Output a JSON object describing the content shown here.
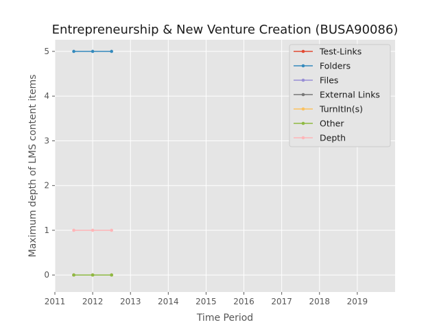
{
  "chart_data": {
    "type": "line",
    "title": "Entrepreneurship & New Venture Creation (BUSA90086)",
    "xlabel": "Time Period",
    "ylabel": "Maximum depth of LMS content items",
    "xlim": [
      2011,
      2020
    ],
    "ylim": [
      -0.38,
      5.26
    ],
    "x_ticks": [
      2011,
      2012,
      2013,
      2014,
      2015,
      2016,
      2017,
      2018,
      2019
    ],
    "y_ticks": [
      0,
      1,
      2,
      3,
      4,
      5
    ],
    "grid": true,
    "legend_position": "top-right",
    "x": [
      2011.5,
      2012.0,
      2012.5
    ],
    "series": [
      {
        "name": "Test-Links",
        "color": "#E24A33",
        "values": [
          0,
          0,
          0
        ]
      },
      {
        "name": "Folders",
        "color": "#348ABD",
        "values": [
          5,
          5,
          5
        ]
      },
      {
        "name": "Files",
        "color": "#988ED5",
        "values": [
          0,
          0,
          0
        ]
      },
      {
        "name": "External Links",
        "color": "#777777",
        "values": [
          0,
          0,
          0
        ]
      },
      {
        "name": "TurnItIn(s)",
        "color": "#FBC15E",
        "values": [
          0,
          0,
          0
        ]
      },
      {
        "name": "Other",
        "color": "#8EBA42",
        "values": [
          0,
          0,
          0
        ]
      },
      {
        "name": "Depth",
        "color": "#FFB5B8",
        "values": [
          1,
          1,
          1
        ]
      }
    ]
  }
}
